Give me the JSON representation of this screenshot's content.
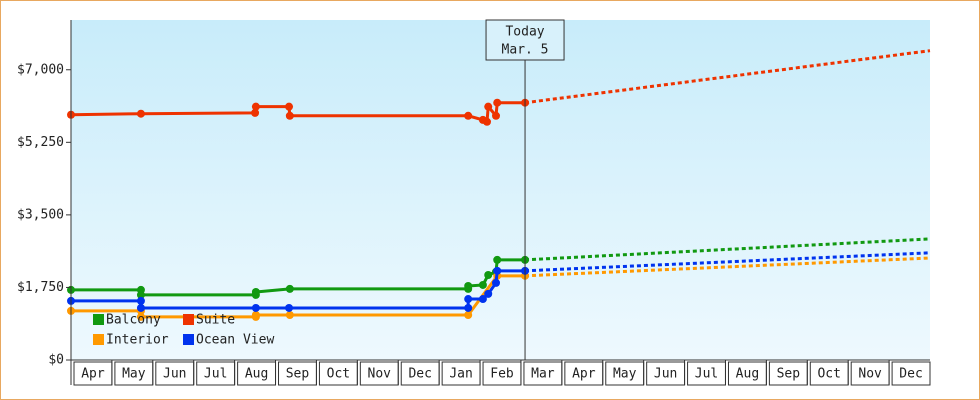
{
  "chart_data": {
    "type": "line",
    "ylim": [
      0,
      8200
    ],
    "yticks": [
      {
        "value": 0,
        "label": "$0"
      },
      {
        "value": 1750,
        "label": "$1,750"
      },
      {
        "value": 3500,
        "label": "$3,500"
      },
      {
        "value": 5250,
        "label": "$5,250"
      },
      {
        "value": 7000,
        "label": "$7,000"
      }
    ],
    "xlim": [
      0,
      21
    ],
    "xticks": [
      {
        "value": 0,
        "label": "Apr"
      },
      {
        "value": 1,
        "label": "May"
      },
      {
        "value": 2,
        "label": "Jun"
      },
      {
        "value": 3,
        "label": "Jul"
      },
      {
        "value": 4,
        "label": "Aug"
      },
      {
        "value": 5,
        "label": "Sep"
      },
      {
        "value": 6,
        "label": "Oct"
      },
      {
        "value": 7,
        "label": "Nov"
      },
      {
        "value": 8,
        "label": "Dec"
      },
      {
        "value": 9,
        "label": "Jan"
      },
      {
        "value": 10,
        "label": "Feb"
      },
      {
        "value": 11,
        "label": "Mar"
      },
      {
        "value": 12,
        "label": "Apr"
      },
      {
        "value": 13,
        "label": "May"
      },
      {
        "value": 14,
        "label": "Jun"
      },
      {
        "value": 15,
        "label": "Jul"
      },
      {
        "value": 16,
        "label": "Aug"
      },
      {
        "value": 17,
        "label": "Sep"
      },
      {
        "value": 18,
        "label": "Oct"
      },
      {
        "value": 19,
        "label": "Nov"
      },
      {
        "value": 20,
        "label": "Dec"
      }
    ],
    "today_x": 11.1,
    "today_label": "Today",
    "today_date": "Mar. 5",
    "series": [
      {
        "name": "Balcony",
        "color": "#119911",
        "x": [
          0,
          1.71,
          1.71,
          4.52,
          4.52,
          5.35,
          9.71,
          9.71,
          10.07,
          10.2,
          10.39,
          10.42,
          11.1
        ],
        "values": [
          1690,
          1690,
          1570,
          1570,
          1640,
          1715,
          1715,
          1785,
          1810,
          2050,
          2125,
          2415,
          2415
        ],
        "forecast_x": [
          11.1,
          21
        ],
        "forecast_values": [
          2415,
          2920
        ]
      },
      {
        "name": "Suite",
        "color": "#ee3300",
        "x": [
          0,
          1.71,
          4.5,
          4.52,
          5.33,
          5.35,
          9.71,
          10.07,
          10.17,
          10.2,
          10.39,
          10.42,
          11.1
        ],
        "values": [
          5915,
          5940,
          5960,
          6110,
          6110,
          5890,
          5890,
          5790,
          5745,
          6110,
          5890,
          6205,
          6205
        ],
        "forecast_x": [
          11.1,
          21
        ],
        "forecast_values": [
          6205,
          7460
        ]
      },
      {
        "name": "Interior",
        "color": "#ff9900",
        "x": [
          0,
          1.71,
          1.71,
          4.52,
          4.52,
          5.35,
          9.71,
          10.42,
          11.1
        ],
        "values": [
          1185,
          1185,
          1040,
          1040,
          1085,
          1085,
          1085,
          2030,
          2030
        ],
        "forecast_x": [
          11.1,
          21
        ],
        "forecast_values": [
          2030,
          2460
        ]
      },
      {
        "name": "Ocean View",
        "color": "#0033ee",
        "x": [
          0,
          1.71,
          1.71,
          4.52,
          5.33,
          9.71,
          9.71,
          10.07,
          10.2,
          10.39,
          10.42,
          11.1
        ],
        "values": [
          1425,
          1425,
          1255,
          1255,
          1255,
          1255,
          1470,
          1470,
          1595,
          1860,
          2150,
          2150
        ],
        "forecast_x": [
          11.1,
          21
        ],
        "forecast_values": [
          2150,
          2585
        ]
      }
    ]
  }
}
